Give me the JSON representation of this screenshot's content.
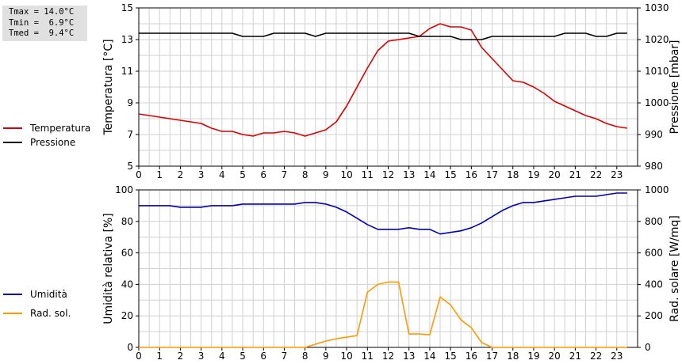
{
  "stats": {
    "tmax": "Tmax = 14.0°C",
    "tmin": "Tmin =  6.9°C",
    "tmed": "Tmed =  9.4°C"
  },
  "chart_data": [
    {
      "type": "line",
      "ylabel": "Temperatura [°C]",
      "y2label": "Pressione [mbar]",
      "xticks": [
        "0",
        "1",
        "2",
        "3",
        "4",
        "5",
        "6",
        "7",
        "8",
        "9",
        "10",
        "11",
        "12",
        "13",
        "14",
        "15",
        "16",
        "17",
        "18",
        "19",
        "20",
        "21",
        "22",
        "23"
      ],
      "xlim": [
        0,
        24
      ],
      "ylim": [
        5,
        15
      ],
      "yticks": [
        5,
        7,
        9,
        11,
        13,
        15
      ],
      "y2lim": [
        980,
        1030
      ],
      "y2ticks": [
        980,
        990,
        1000,
        1010,
        1020,
        1030
      ],
      "grid": true,
      "legend": "left",
      "series": [
        {
          "name": "Temperatura",
          "color": "#dd0000",
          "axis": "left",
          "x": [
            0,
            0.5,
            1,
            1.5,
            2,
            2.5,
            3,
            3.5,
            4,
            4.5,
            5,
            5.5,
            6,
            6.5,
            7,
            7.5,
            8,
            8.5,
            9,
            9.5,
            10,
            10.5,
            11,
            11.5,
            12,
            12.5,
            13,
            13.5,
            14,
            14.5,
            15,
            15.5,
            16,
            16.5,
            17,
            17.5,
            18,
            18.5,
            19,
            19.5,
            20,
            20.5,
            21,
            21.5,
            22,
            22.5,
            23,
            23.5
          ],
          "y": [
            8.3,
            8.2,
            8.1,
            8.0,
            7.9,
            7.8,
            7.7,
            7.4,
            7.2,
            7.2,
            7.0,
            6.9,
            7.1,
            7.1,
            7.2,
            7.1,
            6.9,
            7.1,
            7.3,
            7.8,
            8.8,
            10.0,
            11.2,
            12.3,
            12.9,
            13.0,
            13.1,
            13.2,
            13.7,
            14.0,
            13.8,
            13.8,
            13.6,
            12.5,
            11.8,
            11.1,
            10.4,
            10.3,
            10.0,
            9.6,
            9.1,
            8.8,
            8.5,
            8.2,
            8.0,
            7.7,
            7.5,
            7.4
          ]
        },
        {
          "name": "Pressione",
          "color": "#000000",
          "axis": "right",
          "x": [
            0,
            0.5,
            1,
            1.5,
            2,
            2.5,
            3,
            3.5,
            4,
            4.5,
            5,
            5.5,
            6,
            6.5,
            7,
            7.5,
            8,
            8.5,
            9,
            9.5,
            10,
            10.5,
            11,
            11.5,
            12,
            12.5,
            13,
            13.5,
            14,
            14.5,
            15,
            15.5,
            16,
            16.5,
            17,
            17.5,
            18,
            18.5,
            19,
            19.5,
            20,
            20.5,
            21,
            21.5,
            22,
            22.5,
            23,
            23.5
          ],
          "y": [
            1022,
            1022,
            1022,
            1022,
            1022,
            1022,
            1022,
            1022,
            1022,
            1022,
            1021,
            1021,
            1021,
            1022,
            1022,
            1022,
            1022,
            1021,
            1022,
            1022,
            1022,
            1022,
            1022,
            1022,
            1022,
            1022,
            1022,
            1021,
            1021,
            1021,
            1021,
            1020,
            1020,
            1020,
            1021,
            1021,
            1021,
            1021,
            1021,
            1021,
            1021,
            1022,
            1022,
            1022,
            1021,
            1021,
            1022,
            1022
          ]
        }
      ]
    },
    {
      "type": "line",
      "ylabel": "Umidità relativa [%]",
      "y2label": "Rad. solare [W/mq]",
      "xticks": [
        "0",
        "1",
        "2",
        "3",
        "4",
        "5",
        "6",
        "7",
        "8",
        "9",
        "10",
        "11",
        "12",
        "13",
        "14",
        "15",
        "16",
        "17",
        "18",
        "19",
        "20",
        "21",
        "22",
        "23"
      ],
      "xlim": [
        0,
        24
      ],
      "ylim": [
        0,
        100
      ],
      "yticks": [
        0,
        20,
        40,
        60,
        80,
        100
      ],
      "y2lim": [
        0,
        1000
      ],
      "y2ticks": [
        0,
        200,
        400,
        600,
        800,
        1000
      ],
      "grid": true,
      "legend": "left",
      "series": [
        {
          "name": "Umidità",
          "color": "#0000bb",
          "axis": "left",
          "x": [
            0,
            0.5,
            1,
            1.5,
            2,
            2.5,
            3,
            3.5,
            4,
            4.5,
            5,
            5.5,
            6,
            6.5,
            7,
            7.5,
            8,
            8.5,
            9,
            9.5,
            10,
            10.5,
            11,
            11.5,
            12,
            12.5,
            13,
            13.5,
            14,
            14.5,
            15,
            15.5,
            16,
            16.5,
            17,
            17.5,
            18,
            18.5,
            19,
            19.5,
            20,
            20.5,
            21,
            21.5,
            22,
            22.5,
            23,
            23.5
          ],
          "y": [
            90,
            90,
            90,
            90,
            89,
            89,
            89,
            90,
            90,
            90,
            91,
            91,
            91,
            91,
            91,
            91,
            92,
            92,
            91,
            89,
            86,
            82,
            78,
            75,
            75,
            75,
            76,
            75,
            75,
            72,
            73,
            74,
            76,
            79,
            83,
            87,
            90,
            92,
            92,
            93,
            94,
            95,
            96,
            96,
            96,
            97,
            98,
            98
          ]
        },
        {
          "name": "Rad. sol.",
          "color": "#ff9900",
          "axis": "right",
          "x": [
            0,
            0.5,
            1,
            1.5,
            2,
            2.5,
            3,
            3.5,
            4,
            4.5,
            5,
            5.5,
            6,
            6.5,
            7,
            7.5,
            8,
            8.5,
            9,
            9.5,
            10,
            10.5,
            11,
            11.5,
            12,
            12.5,
            13,
            13.5,
            14,
            14.5,
            15,
            15.5,
            16,
            16.5,
            17,
            17.5,
            18,
            18.5,
            19,
            19.5,
            20,
            20.5,
            21,
            21.5,
            22,
            22.5,
            23,
            23.5
          ],
          "y": [
            0,
            0,
            0,
            0,
            0,
            0,
            0,
            0,
            0,
            0,
            0,
            0,
            0,
            0,
            0,
            0,
            0,
            20,
            40,
            55,
            65,
            75,
            350,
            400,
            415,
            415,
            85,
            85,
            80,
            320,
            270,
            175,
            125,
            30,
            0,
            0,
            0,
            0,
            0,
            0,
            0,
            0,
            0,
            0,
            0,
            0,
            0,
            0
          ]
        }
      ]
    }
  ]
}
